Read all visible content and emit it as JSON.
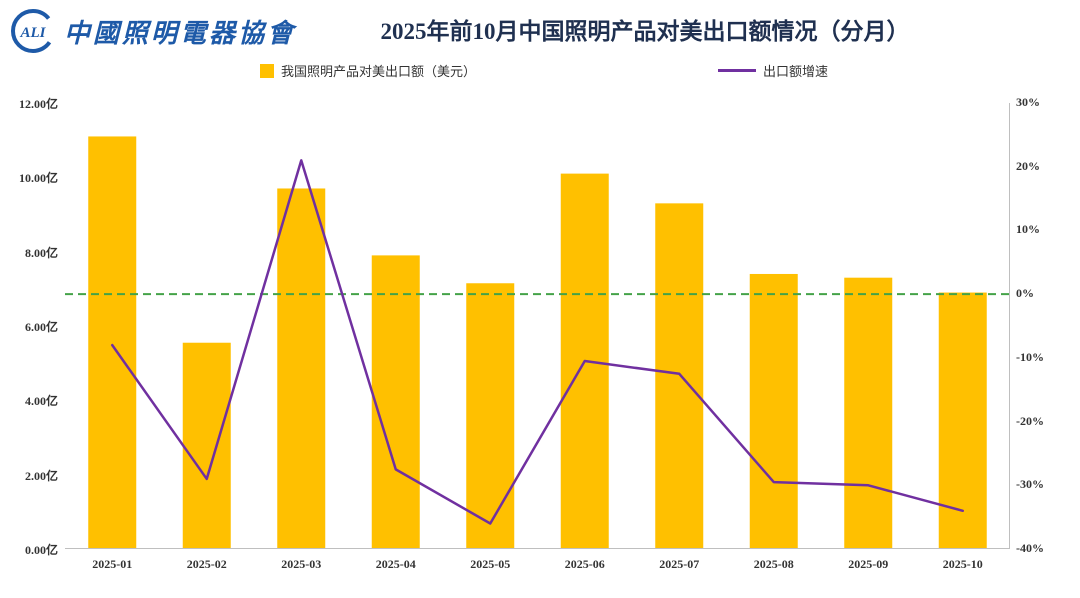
{
  "header": {
    "logo_badge": "ALI",
    "logo_text": "中國照明電器協會",
    "title": "2025年前10月中国照明产品对美出口额情况（分月）"
  },
  "legend": {
    "bar_label": "我国照明产品对美出口额（美元）",
    "line_label": "出口额增速"
  },
  "colors": {
    "brand_blue": "#1E5AA8",
    "title_text": "#1F3050",
    "bar": "#FFC000",
    "line": "#7030A0",
    "zero_line": "#44A248",
    "axis_line": "#BFBFBF"
  },
  "chart_data": {
    "type": "bar",
    "combo": "bar+line",
    "title": "2025年前10月中国照明产品对美出口额情况（分月）",
    "categories": [
      "2025-01",
      "2025-02",
      "2025-03",
      "2025-04",
      "2025-05",
      "2025-06",
      "2025-07",
      "2025-08",
      "2025-09",
      "2025-10"
    ],
    "series": [
      {
        "name": "我国照明产品对美出口额（美元）",
        "type": "bar",
        "axis": "left",
        "unit": "亿美元",
        "values": [
          11.1,
          5.55,
          9.7,
          7.9,
          7.15,
          10.1,
          9.3,
          7.4,
          7.3,
          6.9
        ]
      },
      {
        "name": "出口额增速",
        "type": "line",
        "axis": "right",
        "unit": "%",
        "values": [
          -8,
          -29,
          21,
          -27.5,
          -36,
          -10.5,
          -12.5,
          -29.5,
          -30,
          -34
        ]
      }
    ],
    "left_axis": {
      "min": 0,
      "max": 12,
      "step": 2,
      "labels": [
        "12.00亿",
        "10.00亿",
        "8.00亿",
        "6.00亿",
        "4.00亿",
        "2.00亿",
        "0.00亿"
      ]
    },
    "right_axis": {
      "min": -40,
      "max": 30,
      "step": 10,
      "labels": [
        "30%",
        "20%",
        "10%",
        "0%",
        "-10%",
        "-20%",
        "-30%",
        "-40%"
      ]
    },
    "reference_line": {
      "value": 0,
      "axis": "right",
      "style": "dashed"
    },
    "grid": "off",
    "legend_position": "top"
  }
}
